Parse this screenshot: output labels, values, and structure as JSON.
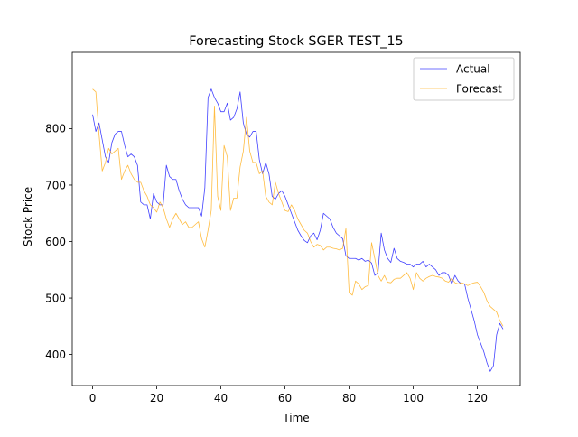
{
  "chart_data": {
    "type": "line",
    "title": "Forecasting Stock SGER TEST_15",
    "xlabel": "Time",
    "ylabel": "Stock Price",
    "xlim": [
      -6.35,
      133.35
    ],
    "ylim": [
      345,
      935
    ],
    "x_ticks": [
      0,
      20,
      40,
      60,
      80,
      100,
      120
    ],
    "y_ticks": [
      400,
      500,
      600,
      700,
      800
    ],
    "x_tick_labels": [
      "0",
      "20",
      "40",
      "60",
      "80",
      "100",
      "120"
    ],
    "y_tick_labels": [
      "400",
      "500",
      "600",
      "700",
      "800"
    ],
    "grid": false,
    "legend_position": "top-right",
    "series": [
      {
        "name": "Actual",
        "color": "#0000ff",
        "values": [
          825,
          795,
          810,
          780,
          750,
          740,
          775,
          790,
          795,
          795,
          770,
          750,
          755,
          750,
          735,
          670,
          665,
          665,
          640,
          685,
          670,
          665,
          665,
          735,
          715,
          710,
          710,
          690,
          675,
          665,
          660,
          660,
          660,
          660,
          645,
          695,
          855,
          870,
          855,
          845,
          830,
          830,
          845,
          815,
          820,
          835,
          865,
          810,
          790,
          785,
          795,
          795,
          745,
          720,
          740,
          720,
          680,
          675,
          685,
          690,
          680,
          665,
          650,
          635,
          620,
          610,
          602,
          598,
          610,
          615,
          603,
          620,
          650,
          645,
          640,
          625,
          615,
          610,
          605,
          575,
          570,
          570,
          570,
          567,
          570,
          565,
          567,
          562,
          540,
          545,
          615,
          585,
          570,
          563,
          588,
          570,
          565,
          563,
          560,
          560,
          555,
          560,
          560,
          565,
          555,
          560,
          555,
          550,
          540,
          545,
          545,
          540,
          525,
          540,
          530,
          525,
          525,
          500,
          480,
          460,
          435,
          420,
          405,
          385,
          370,
          380,
          435,
          455,
          445
        ]
      },
      {
        "name": "Forecast",
        "color": "#ffa500",
        "values": [
          870,
          865,
          790,
          725,
          740,
          765,
          755,
          760,
          765,
          710,
          725,
          735,
          720,
          710,
          705,
          705,
          690,
          680,
          665,
          660,
          652,
          670,
          660,
          640,
          625,
          640,
          650,
          640,
          630,
          635,
          625,
          625,
          630,
          635,
          605,
          590,
          620,
          655,
          840,
          680,
          655,
          770,
          750,
          655,
          677,
          677,
          732,
          760,
          820,
          760,
          740,
          740,
          720,
          725,
          680,
          670,
          665,
          705,
          685,
          670,
          655,
          653,
          665,
          655,
          640,
          630,
          620,
          615,
          600,
          590,
          595,
          593,
          585,
          590,
          590,
          588,
          587,
          585,
          588,
          623,
          510,
          505,
          530,
          525,
          515,
          520,
          522,
          598,
          570,
          540,
          530,
          540,
          528,
          527,
          533,
          535,
          535,
          540,
          545,
          535,
          515,
          545,
          535,
          530,
          535,
          538,
          540,
          538,
          537,
          535,
          530,
          528,
          535,
          527,
          525,
          527,
          525,
          522,
          525,
          527,
          528,
          520,
          510,
          495,
          485,
          480,
          475,
          460,
          450
        ]
      }
    ]
  }
}
